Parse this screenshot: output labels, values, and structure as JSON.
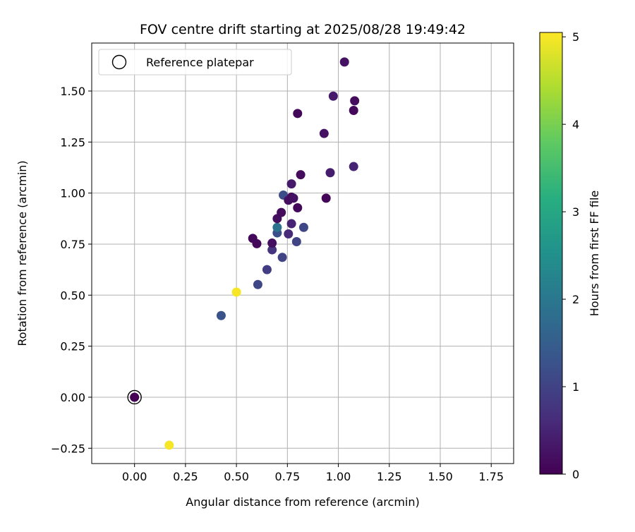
{
  "chart_data": {
    "type": "scatter",
    "title": "FOV centre drift starting at 2025/08/28 19:49:42",
    "xlabel": "Angular distance from reference (arcmin)",
    "ylabel": "Rotation from reference (arcmin)",
    "xlim": [
      -0.21,
      1.86
    ],
    "ylim": [
      -0.325,
      1.735
    ],
    "xticks": [
      0.0,
      0.25,
      0.5,
      0.75,
      1.0,
      1.25,
      1.5,
      1.75
    ],
    "xtick_labels": [
      "0.00",
      "0.25",
      "0.50",
      "0.75",
      "1.00",
      "1.25",
      "1.50",
      "1.75"
    ],
    "yticks": [
      -0.25,
      0.0,
      0.25,
      0.5,
      0.75,
      1.0,
      1.25,
      1.5
    ],
    "ytick_labels": [
      "−0.25",
      "0.00",
      "0.25",
      "0.50",
      "0.75",
      "1.00",
      "1.25",
      "1.50"
    ],
    "grid": true,
    "legend": {
      "position": "top-left",
      "entries": [
        {
          "label": "Reference platepar",
          "marker": "open-circle"
        }
      ]
    },
    "colorbar": {
      "label": "Hours from first FF file",
      "colormap": "viridis",
      "range": [
        0,
        5.05
      ],
      "ticks": [
        0,
        1,
        2,
        3,
        4,
        5
      ],
      "tick_labels": [
        "0",
        "1",
        "2",
        "3",
        "4",
        "5"
      ]
    },
    "reference_point": {
      "x": 0.0,
      "y": 0.0
    },
    "points": [
      {
        "x": 0.0,
        "y": 0.0,
        "hours": 0.0
      },
      {
        "x": 0.17,
        "y": -0.235,
        "hours": 5.0
      },
      {
        "x": 0.5,
        "y": 0.515,
        "hours": 5.0
      },
      {
        "x": 0.425,
        "y": 0.4,
        "hours": 1.3
      },
      {
        "x": 0.605,
        "y": 0.552,
        "hours": 1.05
      },
      {
        "x": 0.65,
        "y": 0.625,
        "hours": 0.9
      },
      {
        "x": 0.675,
        "y": 0.722,
        "hours": 0.75
      },
      {
        "x": 0.725,
        "y": 0.685,
        "hours": 1.0
      },
      {
        "x": 0.58,
        "y": 0.778,
        "hours": 0.1
      },
      {
        "x": 0.6,
        "y": 0.752,
        "hours": 0.1
      },
      {
        "x": 0.675,
        "y": 0.755,
        "hours": 0.2
      },
      {
        "x": 0.7,
        "y": 0.805,
        "hours": 1.2
      },
      {
        "x": 0.7,
        "y": 0.832,
        "hours": 1.9
      },
      {
        "x": 0.7,
        "y": 0.875,
        "hours": 0.2
      },
      {
        "x": 0.72,
        "y": 0.905,
        "hours": 0.15
      },
      {
        "x": 0.755,
        "y": 0.8,
        "hours": 0.6
      },
      {
        "x": 0.77,
        "y": 0.85,
        "hours": 0.5
      },
      {
        "x": 0.795,
        "y": 0.762,
        "hours": 1.0
      },
      {
        "x": 0.83,
        "y": 0.832,
        "hours": 1.05
      },
      {
        "x": 0.73,
        "y": 0.99,
        "hours": 1.2
      },
      {
        "x": 0.755,
        "y": 0.965,
        "hours": 0.2
      },
      {
        "x": 0.77,
        "y": 0.98,
        "hours": 0.15
      },
      {
        "x": 0.78,
        "y": 0.975,
        "hours": 0.25
      },
      {
        "x": 0.77,
        "y": 1.045,
        "hours": 0.35
      },
      {
        "x": 0.8,
        "y": 0.928,
        "hours": 0.1
      },
      {
        "x": 0.815,
        "y": 1.09,
        "hours": 0.15
      },
      {
        "x": 0.94,
        "y": 0.975,
        "hours": 0.05
      },
      {
        "x": 0.96,
        "y": 1.1,
        "hours": 0.4
      },
      {
        "x": 1.075,
        "y": 1.13,
        "hours": 0.5
      },
      {
        "x": 0.93,
        "y": 1.292,
        "hours": 0.25
      },
      {
        "x": 0.8,
        "y": 1.39,
        "hours": 0.1
      },
      {
        "x": 0.975,
        "y": 1.475,
        "hours": 0.35
      },
      {
        "x": 1.075,
        "y": 1.405,
        "hours": 0.1
      },
      {
        "x": 1.08,
        "y": 1.452,
        "hours": 0.15
      },
      {
        "x": 1.03,
        "y": 1.642,
        "hours": 0.25
      }
    ]
  }
}
